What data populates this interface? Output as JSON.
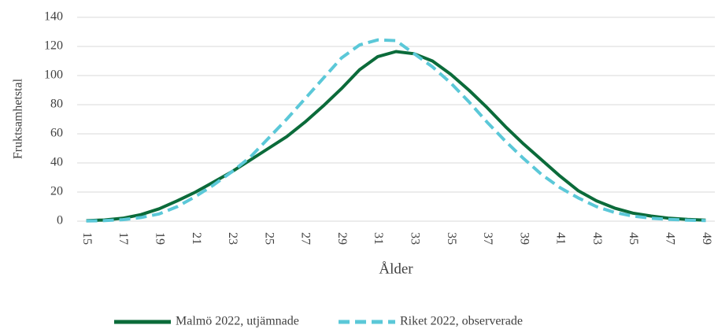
{
  "chart_data": {
    "type": "line",
    "categories": [
      15,
      null,
      17,
      null,
      19,
      null,
      21,
      null,
      23,
      null,
      25,
      null,
      27,
      null,
      29,
      null,
      31,
      null,
      33,
      null,
      35,
      null,
      37,
      null,
      39,
      null,
      41,
      null,
      43,
      null,
      45,
      null,
      47,
      null,
      49
    ],
    "series": [
      {
        "name": "Malmö 2022, utjämnade",
        "color": "#0b6b3a",
        "dash": false,
        "values": [
          0.3,
          0.8,
          2,
          4.5,
          8.5,
          14,
          20,
          27,
          34,
          42,
          50,
          58,
          68,
          79,
          91,
          104,
          113,
          116.5,
          115,
          110,
          101,
          90,
          78,
          65,
          53,
          42,
          31,
          21,
          14,
          9,
          5.5,
          3.5,
          2,
          1.2,
          0.7
        ]
      },
      {
        "name": "Riket 2022, observerade",
        "color": "#5bc8d8",
        "dash": true,
        "values": [
          0.1,
          0.4,
          1,
          2.5,
          5,
          10,
          17,
          25,
          34,
          44,
          57,
          70,
          84,
          98,
          112,
          121,
          124.5,
          124,
          115,
          106,
          95,
          82,
          68,
          55,
          43,
          32,
          23,
          16,
          10,
          6,
          3.5,
          2,
          1.2,
          0.7,
          0.4
        ]
      }
    ],
    "xlabel": "Ålder",
    "ylabel": "Fruktsamhetstal",
    "ylim": [
      0,
      140
    ],
    "yticks": [
      0,
      20,
      40,
      60,
      80,
      100,
      120,
      140
    ],
    "grid": true,
    "legend": "bottom"
  }
}
